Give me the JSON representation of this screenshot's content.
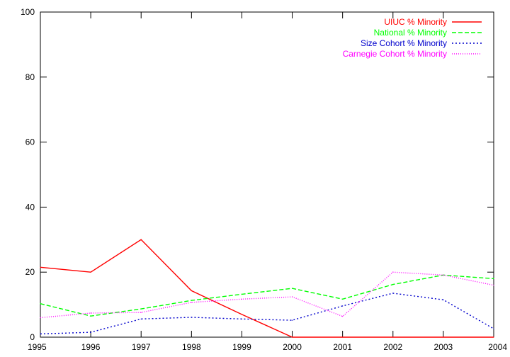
{
  "chart_data": {
    "type": "line",
    "x": [
      1995,
      1996,
      1997,
      1998,
      1999,
      2000,
      2001,
      2002,
      2003,
      2004
    ],
    "xlim": [
      1995,
      2004
    ],
    "ylim": [
      0,
      100
    ],
    "xticks": [
      "1995",
      "1996",
      "1997",
      "1998",
      "1999",
      "2000",
      "2001",
      "2002",
      "2003",
      "2004"
    ],
    "yticks": [
      "0",
      "20",
      "40",
      "60",
      "80",
      "100"
    ],
    "grid": false,
    "legend_position": "top-right",
    "series": [
      {
        "name": "UIUC % Minority",
        "color": "#ff0000",
        "dash": "solid",
        "values": [
          21.5,
          20.0,
          30.0,
          14.3,
          7.0,
          0.0,
          0.0,
          0.0,
          0.0,
          0.0
        ]
      },
      {
        "name": "National % Minority",
        "color": "#00ff00",
        "dash": "dashed",
        "values": [
          10.3,
          6.5,
          8.7,
          11.3,
          13.2,
          15.0,
          11.7,
          16.2,
          19.1,
          18.0
        ]
      },
      {
        "name": "Size Cohort % Minority",
        "color": "#0000cc",
        "dash": "dotted-short",
        "values": [
          1.0,
          1.5,
          5.6,
          6.1,
          5.6,
          5.2,
          9.6,
          13.5,
          11.5,
          2.6
        ]
      },
      {
        "name": "Carnegie Cohort % Minority",
        "color": "#ff00ff",
        "dash": "dotted",
        "values": [
          6.0,
          7.4,
          7.6,
          10.7,
          11.7,
          12.4,
          6.4,
          20.0,
          19.1,
          16.0
        ]
      }
    ]
  }
}
